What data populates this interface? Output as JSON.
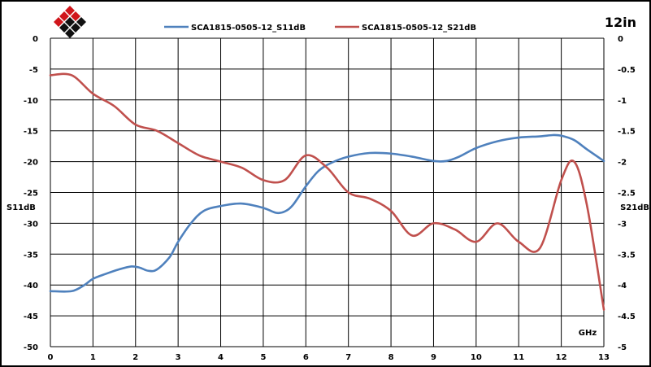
{
  "corner_label": "12in",
  "logo": {
    "icon": "diamond-logo-icon",
    "colors": [
      "#d0151b",
      "#111111"
    ]
  },
  "chart_data": {
    "type": "line",
    "xlabel": "GHz",
    "ylabel_left": "S11dB",
    "ylabel_right": "S21dB",
    "xlim": [
      0,
      13
    ],
    "ylim_left": [
      -50,
      0
    ],
    "ylim_right": [
      -5,
      0
    ],
    "x_ticks": [
      "0",
      "1",
      "2",
      "3",
      "4",
      "5",
      "6",
      "7",
      "8",
      "9",
      "10",
      "11",
      "12",
      "13"
    ],
    "y_ticks_left": [
      "0",
      "-5",
      "-10",
      "-15",
      "-20",
      "-25",
      "-30",
      "-35",
      "-40",
      "-45",
      "-50"
    ],
    "y_ticks_right": [
      "0",
      "-0.5",
      "-1",
      "-1.5",
      "-2",
      "-2.5",
      "-3",
      "-3.5",
      "-4",
      "-4.5",
      "-5"
    ],
    "grid": true,
    "legend_position": "top",
    "series": [
      {
        "name": "SCA1815-0505-12_S11dB",
        "axis": "left",
        "color": "#4f81bd",
        "x": [
          0,
          0.5,
          0.8,
          1.0,
          1.3,
          1.6,
          1.9,
          2.1,
          2.3,
          2.5,
          2.8,
          3.0,
          3.3,
          3.6,
          4.0,
          4.5,
          5.0,
          5.3,
          5.5,
          5.7,
          6.0,
          6.3,
          6.6,
          7.0,
          7.5,
          8.0,
          8.5,
          9.0,
          9.3,
          9.6,
          10.0,
          10.5,
          11.0,
          11.5,
          11.8,
          12.0,
          12.3,
          12.6,
          13.0
        ],
        "y": [
          -41,
          -41,
          -40,
          -39,
          -38.2,
          -37.5,
          -37,
          -37.2,
          -37.7,
          -37.5,
          -35.5,
          -33,
          -30,
          -28,
          -27.2,
          -26.8,
          -27.5,
          -28.3,
          -28.1,
          -27,
          -24,
          -21.5,
          -20.2,
          -19.2,
          -18.6,
          -18.7,
          -19.2,
          -19.9,
          -19.9,
          -19.2,
          -17.8,
          -16.7,
          -16.1,
          -15.9,
          -15.7,
          -15.8,
          -16.5,
          -18,
          -19.9
        ]
      },
      {
        "name": "SCA1815-0505-12_S21dB",
        "axis": "right",
        "color": "#c0504d",
        "x": [
          0,
          0.5,
          1.0,
          1.5,
          2.0,
          2.5,
          3.0,
          3.5,
          4.0,
          4.5,
          5.0,
          5.5,
          6.0,
          6.5,
          7.0,
          7.5,
          8.0,
          8.5,
          9.0,
          9.5,
          10.0,
          10.5,
          11.0,
          11.5,
          12.0,
          12.3,
          12.6,
          13.0
        ],
        "y": [
          -0.6,
          -0.6,
          -0.9,
          -1.1,
          -1.4,
          -1.5,
          -1.7,
          -1.9,
          -2.0,
          -2.1,
          -2.3,
          -2.3,
          -1.9,
          -2.1,
          -2.5,
          -2.6,
          -2.8,
          -3.2,
          -3.0,
          -3.1,
          -3.3,
          -3.0,
          -3.3,
          -3.4,
          -2.3,
          -2.0,
          -2.7,
          -4.4
        ]
      }
    ]
  }
}
